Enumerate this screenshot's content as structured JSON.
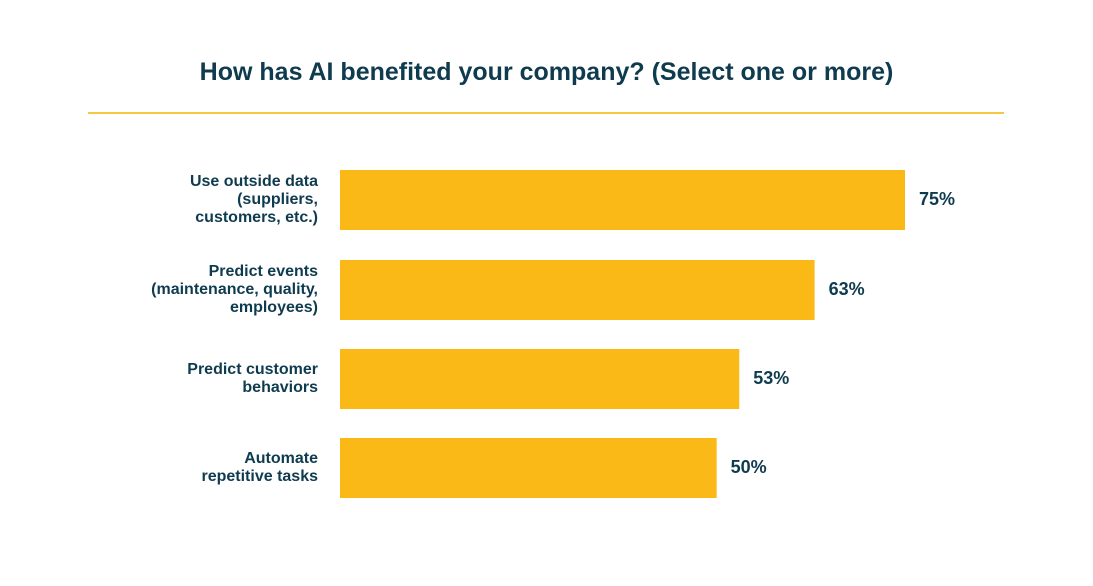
{
  "colors": {
    "bar": "#fbb917",
    "text": "#0f3b4f",
    "rule": "#f5c842",
    "background": "#ffffff"
  },
  "chart_data": {
    "type": "bar",
    "orientation": "horizontal",
    "title": "How has AI benefited your company? (Select one or more)",
    "xlabel": "",
    "ylabel": "",
    "xlim": [
      0,
      100
    ],
    "unit": "%",
    "grid": false,
    "legend": "none",
    "categories": [
      [
        "Use outside data",
        "(suppliers,",
        "customers, etc.)"
      ],
      [
        "Predict events",
        "(maintenance, quality,",
        "employees)"
      ],
      [
        "Predict customer",
        "behaviors"
      ],
      [
        "Automate",
        "repetitive tasks"
      ]
    ],
    "values": [
      75,
      63,
      53,
      50
    ],
    "value_labels": [
      "75%",
      "63%",
      "53%",
      "50%"
    ]
  }
}
